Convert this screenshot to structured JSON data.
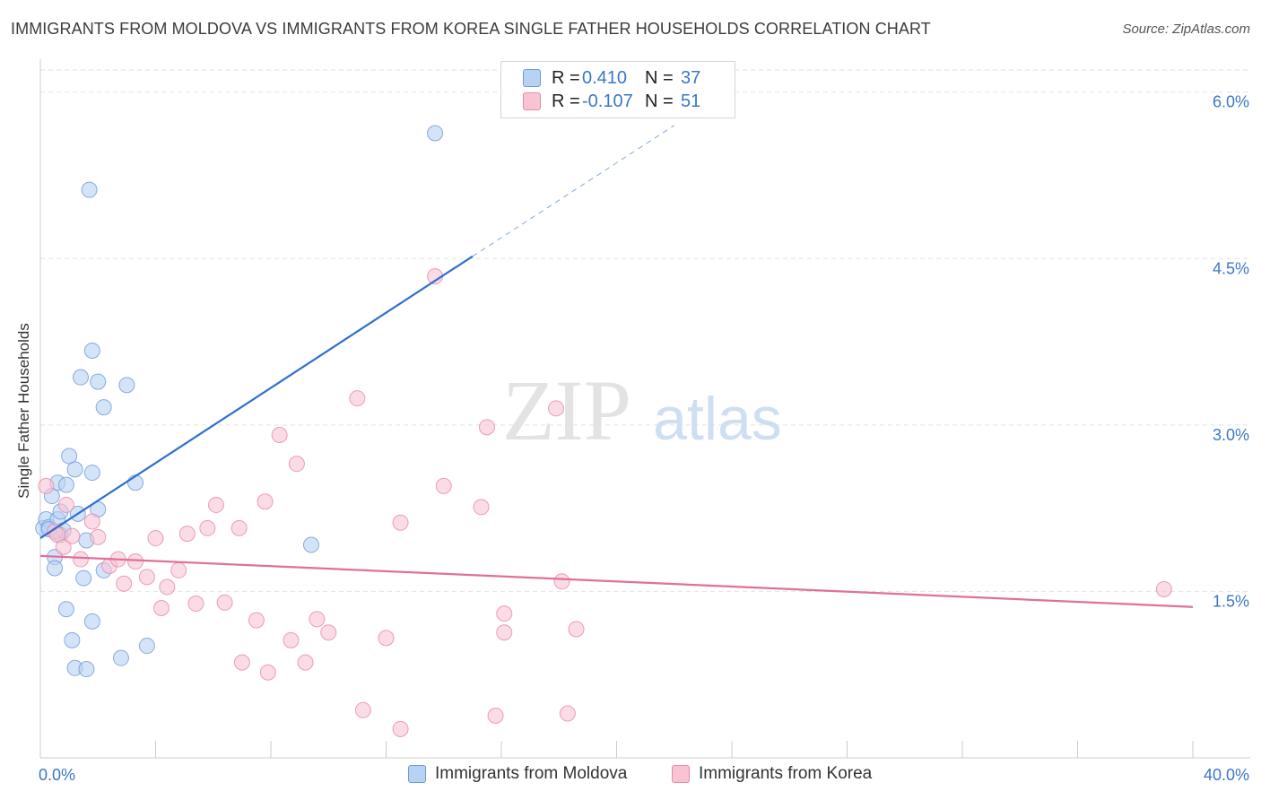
{
  "title": "IMMIGRANTS FROM MOLDOVA VS IMMIGRANTS FROM KOREA SINGLE FATHER HOUSEHOLDS CORRELATION CHART",
  "source": "Source: ZipAtlas.com",
  "watermark": {
    "zip": "ZIP",
    "atlas": "atlas"
  },
  "legend": {
    "rows": [
      {
        "r_label": "R =",
        "r_value": "0.410",
        "n_label": "N =",
        "n_value": "37"
      },
      {
        "r_label": "R =",
        "r_value": "-0.107",
        "n_label": "N =",
        "n_value": "51"
      }
    ]
  },
  "bottom_legend": [
    "Immigrants from Moldova",
    "Immigrants from Korea"
  ],
  "colors": {
    "moldova_fill": "#b8d2f4",
    "moldova_stroke": "#6e9ad6",
    "moldova_line": "#2f6fcf",
    "korea_fill": "#f8c3d3",
    "korea_stroke": "#e68aa8",
    "korea_line": "#e0709a",
    "tick_label": "#3a77c8",
    "grid": "#e2e2e2"
  },
  "chart_data": {
    "type": "scatter",
    "title": "IMMIGRANTS FROM MOLDOVA VS IMMIGRANTS FROM KOREA SINGLE FATHER HOUSEHOLDS CORRELATION CHART",
    "xlabel": "",
    "ylabel": "Single Father Households",
    "xlim": [
      0,
      40
    ],
    "ylim": [
      0,
      6.2
    ],
    "x_tick_labels": [
      "0.0%",
      "40.0%"
    ],
    "y_ticks": [
      1.5,
      3.0,
      4.5,
      6.0
    ],
    "y_tick_labels": [
      "1.5%",
      "3.0%",
      "4.5%",
      "6.0%"
    ],
    "grid": true,
    "legend_position": "top-center",
    "series": [
      {
        "name": "Immigrants from Moldova",
        "color": "#b8d2f4",
        "points": [
          [
            0.1,
            2.07
          ],
          [
            0.2,
            2.15
          ],
          [
            0.3,
            2.08
          ],
          [
            0.4,
            2.36
          ],
          [
            0.5,
            1.81
          ],
          [
            0.5,
            1.71
          ],
          [
            0.6,
            2.15
          ],
          [
            0.6,
            2.48
          ],
          [
            0.7,
            2.01
          ],
          [
            0.7,
            2.22
          ],
          [
            0.8,
            2.05
          ],
          [
            0.9,
            2.46
          ],
          [
            0.9,
            1.34
          ],
          [
            1.0,
            2.72
          ],
          [
            1.1,
            1.06
          ],
          [
            1.2,
            0.81
          ],
          [
            1.2,
            2.6
          ],
          [
            1.3,
            2.2
          ],
          [
            1.4,
            3.43
          ],
          [
            1.5,
            1.62
          ],
          [
            1.6,
            0.8
          ],
          [
            1.6,
            1.96
          ],
          [
            1.7,
            5.12
          ],
          [
            1.8,
            2.57
          ],
          [
            1.8,
            1.23
          ],
          [
            1.8,
            3.67
          ],
          [
            2.0,
            3.39
          ],
          [
            2.0,
            2.24
          ],
          [
            2.2,
            1.69
          ],
          [
            2.2,
            3.16
          ],
          [
            2.8,
            0.9
          ],
          [
            3.0,
            3.36
          ],
          [
            3.3,
            2.48
          ],
          [
            3.7,
            1.01
          ],
          [
            9.4,
            1.92
          ],
          [
            13.7,
            5.63
          ],
          [
            0.3,
            2.06
          ]
        ]
      },
      {
        "name": "Immigrants from Korea",
        "color": "#f8c3d3",
        "points": [
          [
            0.2,
            2.45
          ],
          [
            0.5,
            2.04
          ],
          [
            0.6,
            2.01
          ],
          [
            0.8,
            1.9
          ],
          [
            0.9,
            2.28
          ],
          [
            1.1,
            2.0
          ],
          [
            1.4,
            1.79
          ],
          [
            1.8,
            2.13
          ],
          [
            2.0,
            1.99
          ],
          [
            2.4,
            1.73
          ],
          [
            2.7,
            1.79
          ],
          [
            2.9,
            1.57
          ],
          [
            3.3,
            1.77
          ],
          [
            3.7,
            1.63
          ],
          [
            4.0,
            1.98
          ],
          [
            4.2,
            1.35
          ],
          [
            4.4,
            1.54
          ],
          [
            4.8,
            1.69
          ],
          [
            5.1,
            2.02
          ],
          [
            5.4,
            1.39
          ],
          [
            5.8,
            2.07
          ],
          [
            6.1,
            2.28
          ],
          [
            6.4,
            1.4
          ],
          [
            6.9,
            2.07
          ],
          [
            7.0,
            0.86
          ],
          [
            7.5,
            1.24
          ],
          [
            7.8,
            2.31
          ],
          [
            7.9,
            0.77
          ],
          [
            8.3,
            2.91
          ],
          [
            8.7,
            1.06
          ],
          [
            8.9,
            2.65
          ],
          [
            9.2,
            0.86
          ],
          [
            9.6,
            1.25
          ],
          [
            10.0,
            1.13
          ],
          [
            11.0,
            3.24
          ],
          [
            11.2,
            0.43
          ],
          [
            12.0,
            1.08
          ],
          [
            12.5,
            0.26
          ],
          [
            12.5,
            2.12
          ],
          [
            13.7,
            4.34
          ],
          [
            14.0,
            2.45
          ],
          [
            15.3,
            2.26
          ],
          [
            15.5,
            2.98
          ],
          [
            15.8,
            0.38
          ],
          [
            16.1,
            1.13
          ],
          [
            16.1,
            1.3
          ],
          [
            17.9,
            3.15
          ],
          [
            18.1,
            1.59
          ],
          [
            18.3,
            0.4
          ],
          [
            18.6,
            1.16
          ],
          [
            39.0,
            1.52
          ]
        ]
      }
    ],
    "trend_lines": [
      {
        "name": "Immigrants from Moldova",
        "x": [
          0.0,
          15.0
        ],
        "y": [
          1.98,
          4.52
        ],
        "dashed_extension_to": [
          22.0,
          5.7
        ]
      },
      {
        "name": "Immigrants from Korea",
        "x": [
          0.0,
          40.0
        ],
        "y": [
          1.82,
          1.36
        ]
      }
    ]
  }
}
